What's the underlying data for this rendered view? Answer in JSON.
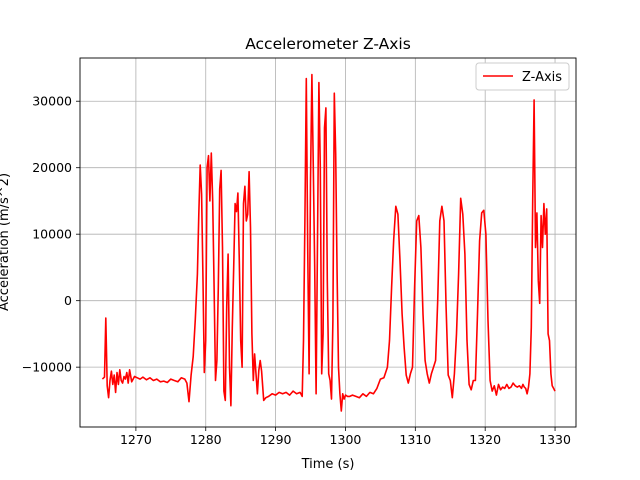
{
  "chart_data": {
    "type": "line",
    "title": "Accelerometer Z-Axis",
    "xlabel": "Time (s)",
    "ylabel": "Acceleration (m/s^2)",
    "xlim": [
      1262,
      1333
    ],
    "ylim": [
      -19000,
      36500
    ],
    "xticks": [
      1270,
      1280,
      1290,
      1300,
      1310,
      1320,
      1330
    ],
    "yticks": [
      -10000,
      0,
      10000,
      20000,
      30000
    ],
    "xtick_labels": [
      "1270",
      "1280",
      "1290",
      "1300",
      "1310",
      "1320",
      "1330"
    ],
    "ytick_labels": [
      "−10000",
      "0",
      "10000",
      "20000",
      "30000"
    ],
    "grid": true,
    "legend_position": "top-right",
    "series": [
      {
        "name": "Z-Axis",
        "color": "#ff0000",
        "x": [
          1265.2,
          1265.5,
          1265.7,
          1265.9,
          1266.1,
          1266.3,
          1266.5,
          1266.7,
          1266.9,
          1267.1,
          1267.3,
          1267.5,
          1267.7,
          1267.9,
          1268.1,
          1268.3,
          1268.5,
          1268.7,
          1268.9,
          1269.1,
          1269.4,
          1269.8,
          1270.2,
          1270.6,
          1271.0,
          1271.5,
          1272.0,
          1272.5,
          1273.0,
          1273.5,
          1274.0,
          1274.5,
          1275.0,
          1275.5,
          1276.0,
          1276.5,
          1277.0,
          1277.3,
          1277.6,
          1277.9,
          1278.2,
          1278.5,
          1278.8,
          1279.0,
          1279.2,
          1279.4,
          1279.6,
          1279.8,
          1280.0,
          1280.2,
          1280.4,
          1280.6,
          1280.8,
          1281.0,
          1281.2,
          1281.4,
          1281.6,
          1281.8,
          1282.0,
          1282.2,
          1282.4,
          1282.6,
          1282.8,
          1283.0,
          1283.2,
          1283.4,
          1283.6,
          1283.8,
          1284.0,
          1284.2,
          1284.4,
          1284.6,
          1284.8,
          1285.0,
          1285.2,
          1285.4,
          1285.6,
          1285.8,
          1286.0,
          1286.2,
          1286.4,
          1286.6,
          1286.8,
          1287.0,
          1287.2,
          1287.4,
          1287.6,
          1287.8,
          1288.0,
          1288.3,
          1288.6,
          1289.0,
          1289.5,
          1290.0,
          1290.5,
          1291.0,
          1291.5,
          1292.0,
          1292.5,
          1293.0,
          1293.5,
          1293.8,
          1294.0,
          1294.2,
          1294.4,
          1294.6,
          1294.8,
          1295.0,
          1295.2,
          1295.4,
          1295.6,
          1295.8,
          1296.0,
          1296.2,
          1296.4,
          1296.6,
          1296.8,
          1297.0,
          1297.2,
          1297.4,
          1297.6,
          1297.8,
          1298.0,
          1298.2,
          1298.4,
          1298.6,
          1298.8,
          1299.0,
          1299.2,
          1299.4,
          1299.6,
          1299.8,
          1300.0,
          1300.3,
          1300.6,
          1301.0,
          1301.5,
          1302.0,
          1302.5,
          1303.0,
          1303.5,
          1304.0,
          1304.5,
          1305.0,
          1305.5,
          1306.0,
          1306.3,
          1306.6,
          1306.9,
          1307.2,
          1307.5,
          1307.8,
          1308.1,
          1308.4,
          1308.7,
          1309.0,
          1309.3,
          1309.6,
          1309.9,
          1310.2,
          1310.5,
          1310.8,
          1311.1,
          1311.4,
          1311.7,
          1312.0,
          1312.3,
          1312.6,
          1312.9,
          1313.2,
          1313.5,
          1313.8,
          1314.1,
          1314.4,
          1314.7,
          1315.0,
          1315.3,
          1315.6,
          1315.9,
          1316.2,
          1316.5,
          1316.8,
          1317.1,
          1317.4,
          1317.7,
          1318.0,
          1318.3,
          1318.6,
          1318.9,
          1319.2,
          1319.5,
          1319.8,
          1320.1,
          1320.4,
          1320.7,
          1321.0,
          1321.3,
          1321.6,
          1321.9,
          1322.2,
          1322.5,
          1322.8,
          1323.1,
          1323.4,
          1323.7,
          1324.0,
          1324.3,
          1324.6,
          1324.9,
          1325.2,
          1325.4,
          1325.6,
          1325.8,
          1326.0,
          1326.2,
          1326.4,
          1326.6,
          1326.8,
          1327.0,
          1327.2,
          1327.4,
          1327.6,
          1327.8,
          1328.0,
          1328.2,
          1328.4,
          1328.6,
          1328.8,
          1329.0,
          1329.2,
          1329.4,
          1329.6,
          1329.8,
          1330.0
        ],
        "y": [
          -11800,
          -11500,
          -2600,
          -12800,
          -14600,
          -12000,
          -10600,
          -12600,
          -11200,
          -13800,
          -10800,
          -12600,
          -10400,
          -12000,
          -12400,
          -11400,
          -11800,
          -10800,
          -12400,
          -10400,
          -12200,
          -11400,
          -11600,
          -11800,
          -11500,
          -11900,
          -11600,
          -12000,
          -11800,
          -12200,
          -12100,
          -12300,
          -11800,
          -12000,
          -12200,
          -11600,
          -11800,
          -12400,
          -15200,
          -11200,
          -8400,
          -2800,
          4000,
          13000,
          20400,
          16000,
          3000,
          -10800,
          -6000,
          20000,
          21800,
          15000,
          22200,
          15000,
          2000,
          -12000,
          -9000,
          2000,
          16800,
          19600,
          8000,
          -13600,
          -15000,
          -1000,
          7000,
          -10000,
          -15800,
          -4000,
          5000,
          14600,
          13400,
          16200,
          6000,
          -6000,
          -10000,
          14600,
          17200,
          12000,
          13000,
          19400,
          11000,
          -5000,
          -12000,
          -8000,
          -11000,
          -14000,
          -10500,
          -9000,
          -10600,
          -15000,
          -14600,
          -14400,
          -14000,
          -14200,
          -13800,
          -14000,
          -13800,
          -14200,
          -13600,
          -14000,
          -13800,
          -14400,
          -6000,
          12000,
          33400,
          8000,
          -11000,
          18000,
          34000,
          20000,
          5000,
          -14000,
          9000,
          32800,
          20000,
          -11000,
          -5000,
          26000,
          29000,
          3000,
          -11000,
          -12000,
          -14800,
          -3000,
          31200,
          22000,
          4000,
          -10000,
          -14000,
          -16600,
          -14000,
          -14800,
          -14200,
          -14400,
          -14400,
          -14200,
          -14400,
          -14600,
          -14000,
          -14400,
          -13800,
          -14000,
          -13200,
          -11800,
          -11600,
          -10000,
          -6000,
          2000,
          9200,
          14200,
          13000,
          6000,
          -2000,
          -7000,
          -11200,
          -12400,
          -11000,
          -10000,
          2000,
          12000,
          12800,
          8000,
          -2000,
          -9000,
          -11000,
          -12400,
          -11000,
          -10000,
          -9000,
          0,
          12000,
          14200,
          12000,
          -1000,
          -11200,
          -12000,
          -14600,
          -11000,
          -5000,
          4000,
          15400,
          13000,
          7000,
          -6000,
          -12600,
          -13400,
          -12000,
          -12000,
          -2000,
          9000,
          13200,
          13600,
          10000,
          -3000,
          -12000,
          -13600,
          -12800,
          -14200,
          -12600,
          -13400,
          -13000,
          -13200,
          -12600,
          -13200,
          -13000,
          -12400,
          -12800,
          -13000,
          -12800,
          -13200,
          -12600,
          -13000,
          -13200,
          -14000,
          -13000,
          -11000,
          -4000,
          15000,
          30200,
          8000,
          13200,
          3000,
          -400,
          12800,
          8000,
          14600,
          10000,
          13800,
          -5000,
          -6000,
          -11000,
          -12800,
          -13200,
          -13600
        ]
      }
    ]
  }
}
